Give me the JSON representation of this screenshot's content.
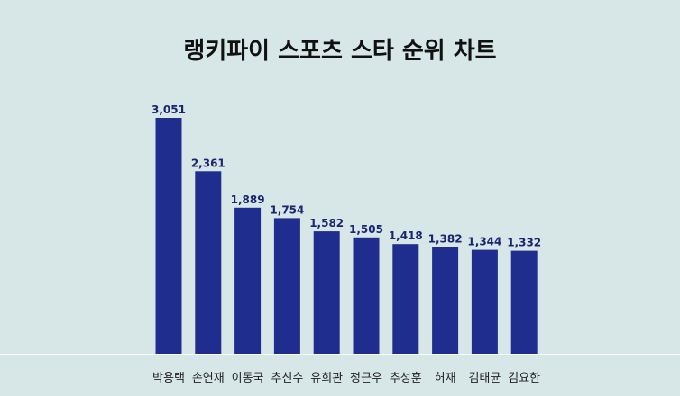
{
  "chart_data": {
    "type": "bar",
    "title": "랭키파이 스포츠 스타 순위 차트",
    "xlabel": "",
    "ylabel": "",
    "categories": [
      "박용택",
      "손연재",
      "이동국",
      "추신수",
      "유희관",
      "정근우",
      "추성훈",
      "허재",
      "김태균",
      "김요한"
    ],
    "values": [
      3051,
      2361,
      1889,
      1754,
      1582,
      1505,
      1418,
      1382,
      1344,
      1332
    ],
    "value_labels": [
      "3,051",
      "2,361",
      "1,889",
      "1,754",
      "1,582",
      "1,505",
      "1,418",
      "1,382",
      "1,344",
      "1,332"
    ],
    "ylim": [
      0,
      3051
    ],
    "grid": false,
    "legend": "none"
  },
  "colors": {
    "background": "#d7e6e6",
    "bar": "#1f2d8f",
    "value_label": "#1a2470",
    "category_label": "#222222",
    "baseline": "#ffffff"
  }
}
